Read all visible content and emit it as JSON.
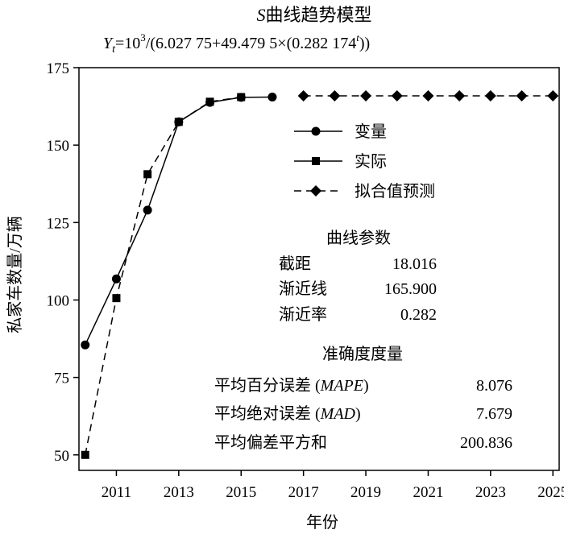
{
  "chart_data": {
    "type": "line",
    "title_prefix": "S",
    "title_main": "曲线趋势模型",
    "formula": {
      "y": "Y",
      "y_sub": "t",
      "part1": "=10",
      "sup1": "3",
      "part2": "/(6.027 75+49.479 5×(0.282 174",
      "sup2": "t",
      "part3": "))"
    },
    "xlabel": "年份",
    "ylabel": "私家车数量/万辆",
    "xlim": [
      2009.8,
      2025.2
    ],
    "ylim": [
      45,
      175
    ],
    "xticks": [
      2011,
      2013,
      2015,
      2017,
      2019,
      2021,
      2023,
      2025
    ],
    "yticks": [
      50,
      75,
      100,
      125,
      150,
      175
    ],
    "series": [
      {
        "name": "变量",
        "marker": "circle",
        "line": "solid",
        "x": [
          2010,
          2011,
          2012,
          2013,
          2014,
          2015,
          2016
        ],
        "values": [
          85.5,
          106.8,
          129.0,
          157.5,
          163.8,
          165.4,
          165.5
        ]
      },
      {
        "name": "实际",
        "marker": "square",
        "line": "dashed",
        "x": [
          2010,
          2011,
          2012,
          2013,
          2014,
          2015
        ],
        "values": [
          50.0,
          100.6,
          140.6,
          157.5,
          164.0,
          165.5
        ]
      },
      {
        "name": "拟合值预测",
        "marker": "diamond",
        "line": "dashed",
        "x": [
          2017,
          2018,
          2019,
          2020,
          2021,
          2022,
          2023,
          2024,
          2025
        ],
        "values": [
          165.9,
          165.9,
          165.9,
          165.9,
          165.9,
          165.9,
          165.9,
          165.9,
          165.9
        ]
      }
    ],
    "curve_params": {
      "title": "曲线参数",
      "rows": [
        {
          "label": "截距",
          "value": "18.016"
        },
        {
          "label": "渐近线",
          "value": "165.900"
        },
        {
          "label": "渐近率",
          "value": "0.282"
        }
      ]
    },
    "accuracy": {
      "title": "准确度度量",
      "rows": [
        {
          "label": "平均百分误差 (",
          "abbr": "MAPE",
          "close": ")",
          "value": "8.076"
        },
        {
          "label": "平均绝对误差 (",
          "abbr": "MAD",
          "close": ")",
          "value": "7.679"
        },
        {
          "label": "平均偏差平方和",
          "abbr": "",
          "close": "",
          "value": "200.836"
        }
      ]
    }
  }
}
